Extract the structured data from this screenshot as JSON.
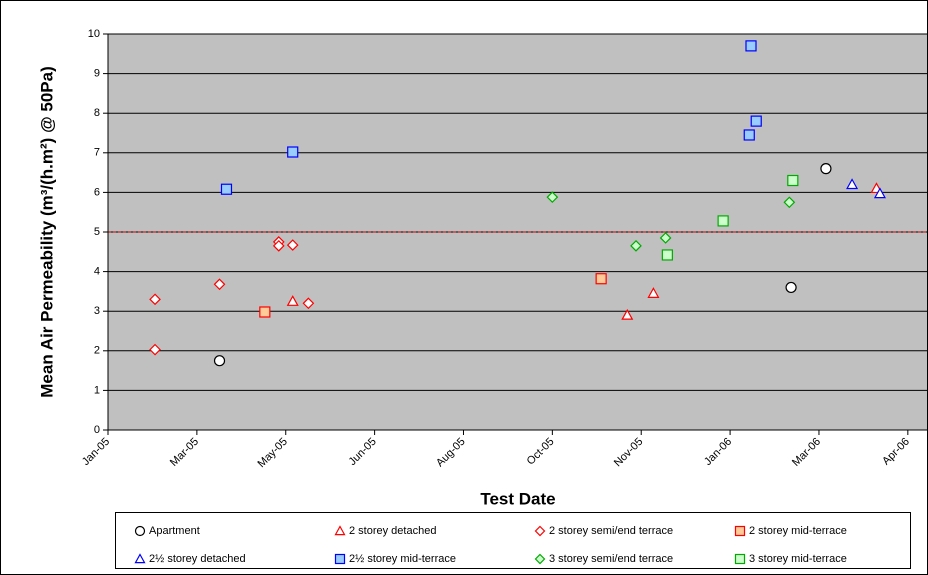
{
  "chart_data": {
    "type": "scatter",
    "x_label": "Test Date",
    "y_label": "Mean Air Permeability (m³/(h.m²) @ 50Pa)",
    "xlim": [
      38372,
      38842
    ],
    "ylim": [
      0,
      10
    ],
    "xticks": [
      {
        "value": 38372,
        "label": "Jan-05"
      },
      {
        "value": 38423,
        "label": "Mar-05"
      },
      {
        "value": 38474,
        "label": "May-05"
      },
      {
        "value": 38525,
        "label": "Jun-05"
      },
      {
        "value": 38576,
        "label": "Aug-05"
      },
      {
        "value": 38627,
        "label": "Oct-05"
      },
      {
        "value": 38678,
        "label": "Nov-05"
      },
      {
        "value": 38729,
        "label": "Jan-06"
      },
      {
        "value": 38780,
        "label": "Mar-06"
      },
      {
        "value": 38831,
        "label": "Apr-06"
      }
    ],
    "yticks": [
      0,
      1,
      2,
      3,
      4,
      5,
      6,
      7,
      8,
      9,
      10
    ],
    "grid": true,
    "plot_background": "#c0c0c0",
    "reference_line": {
      "value": 5,
      "color": "#cc0000"
    },
    "legend": "bottom",
    "series": [
      {
        "name": "Apartment",
        "marker": "circle",
        "color": "#000000",
        "fill": "#ffffff",
        "x": [
          38436,
          38784,
          38764
        ],
        "values": [
          1.75,
          6.6,
          3.6
        ]
      },
      {
        "name": "2 storey detached",
        "marker": "triangle",
        "color": "#ff0000",
        "fill": "#ffffff",
        "x": [
          38478,
          38670,
          38685,
          38813
        ],
        "values": [
          3.25,
          2.9,
          3.45,
          6.1
        ]
      },
      {
        "name": "2 storey semi/end terrace",
        "marker": "diamond",
        "color": "#ff0000",
        "fill": "#ffffff",
        "x": [
          38399,
          38399,
          38436,
          38470,
          38470,
          38478,
          38487
        ],
        "values": [
          3.3,
          2.03,
          3.68,
          4.75,
          4.65,
          4.67,
          3.2
        ]
      },
      {
        "name": "2 storey mid-terrace",
        "marker": "square",
        "color": "#ff0000",
        "fill": "#ffcc99",
        "x": [
          38462,
          38655
        ],
        "values": [
          2.98,
          3.82
        ]
      },
      {
        "name": "2½ storey detached",
        "marker": "triangle",
        "color": "#0000ff",
        "fill": "#ffffff",
        "x": [
          38799,
          38815
        ],
        "values": [
          6.2,
          5.97
        ]
      },
      {
        "name": "2½ storey mid-terrace",
        "marker": "square",
        "color": "#0000ff",
        "fill": "#99ccff",
        "x": [
          38440,
          38478,
          38741,
          38740,
          38744
        ],
        "values": [
          6.08,
          7.02,
          9.7,
          7.45,
          7.8
        ]
      },
      {
        "name": "3 storey semi/end terrace",
        "marker": "diamond",
        "color": "#00aa00",
        "fill": "#ccffcc",
        "x": [
          38627,
          38675,
          38692,
          38763
        ],
        "values": [
          5.88,
          4.65,
          4.85,
          5.75
        ]
      },
      {
        "name": "3 storey mid-terrace",
        "marker": "square",
        "color": "#00aa00",
        "fill": "#ccffcc",
        "x": [
          38693,
          38725,
          38765
        ],
        "values": [
          4.42,
          5.28,
          6.3
        ]
      }
    ]
  }
}
